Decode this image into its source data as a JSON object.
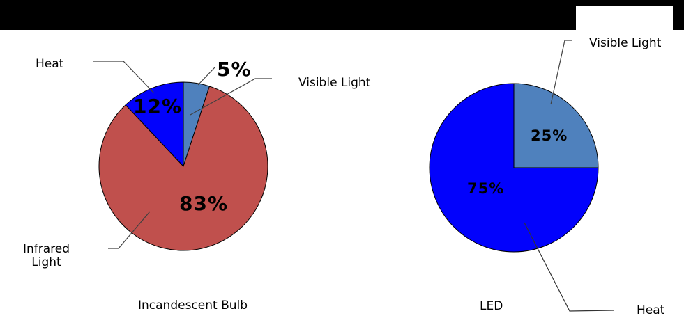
{
  "page": {
    "background_color": "#FFFFFF",
    "top_bar_color": "#000000"
  },
  "chart_data": [
    {
      "type": "pie",
      "title": "Incandescent Bulb",
      "unit": "%",
      "start_angle_deg": 0,
      "direction": "clockwise",
      "slices": [
        {
          "label": "Visible Light",
          "value": 5,
          "pct_label": "5%",
          "color": "#4F81BD"
        },
        {
          "label": "Infrared Light",
          "value": 83,
          "pct_label": "83%",
          "color": "#C0504D"
        },
        {
          "label": "Heat",
          "value": 12,
          "pct_label": "12%",
          "color": "#0202FC"
        }
      ]
    },
    {
      "type": "pie",
      "title": "LED",
      "unit": "%",
      "start_angle_deg": 0,
      "direction": "clockwise",
      "slices": [
        {
          "label": "Visible Light",
          "value": 25,
          "pct_label": "25%",
          "color": "#4F81BD"
        },
        {
          "label": "Heat",
          "value": 75,
          "pct_label": "75%",
          "color": "#0202FC"
        }
      ]
    }
  ]
}
